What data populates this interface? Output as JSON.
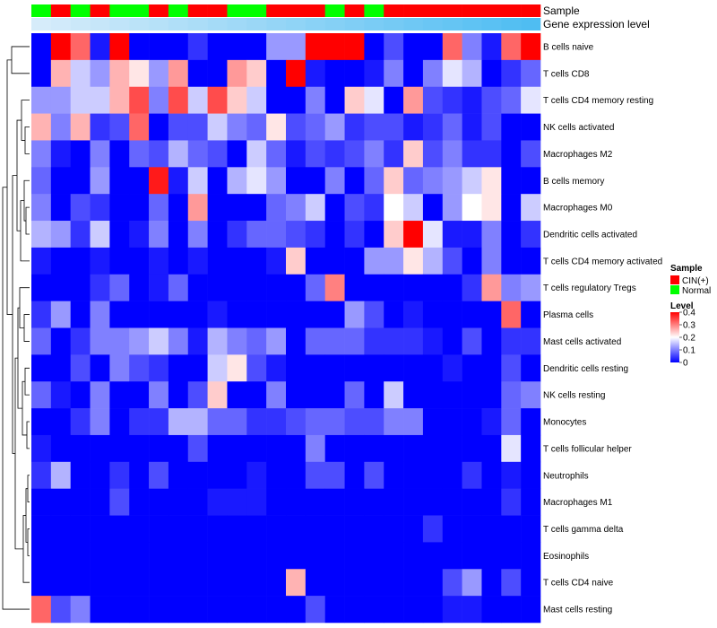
{
  "chart_data": {
    "type": "heatmap",
    "title": "",
    "annotation_titles": {
      "sample": "Sample",
      "gene": "Gene expression level"
    },
    "sample_annotation": [
      1,
      0,
      1,
      0,
      1,
      1,
      0,
      1,
      0,
      0,
      1,
      1,
      0,
      0,
      0,
      1,
      0,
      1,
      0,
      0,
      0,
      0,
      0,
      0,
      0,
      0
    ],
    "gene_expression_annotation": [
      0.0,
      0.04,
      0.08,
      0.12,
      0.16,
      0.2,
      0.24,
      0.28,
      0.32,
      0.36,
      0.4,
      0.44,
      0.48,
      0.52,
      0.56,
      0.6,
      0.64,
      0.68,
      0.72,
      0.76,
      0.8,
      0.84,
      0.88,
      0.92,
      0.96,
      1.0
    ],
    "gene_expression_colors": [
      "#d6ecfa",
      "#4fbdf2"
    ],
    "rows": [
      "B cells naive",
      "T cells CD8",
      "T cells CD4 memory resting",
      "NK cells activated",
      "Macrophages M2",
      "B cells memory",
      "Macrophages M0",
      "Dendritic cells activated",
      "T cells CD4 memory activated",
      "T cells regulatory  Tregs",
      "Plasma cells",
      "Mast cells activated",
      "Dendritic cells resting",
      "NK cells resting",
      "Monocytes",
      "T cells follicular helper",
      "Neutrophils",
      "Macrophages M1",
      "T cells gamma delta",
      "Eosinophils",
      "T cells CD4 naive",
      "Mast cells resting"
    ],
    "values": [
      [
        0,
        0.4,
        0.32,
        0.02,
        0.4,
        0,
        0,
        0,
        0.04,
        0,
        0,
        0,
        0.12,
        0.12,
        0.4,
        0.4,
        0.4,
        0,
        0.06,
        0,
        0,
        0.32,
        0.1,
        0.02,
        0.32,
        0.4
      ],
      [
        0,
        0.26,
        0.16,
        0.12,
        0.26,
        0.22,
        0.12,
        0.28,
        0,
        0,
        0.28,
        0.24,
        0,
        0.4,
        0.02,
        0,
        0,
        0.02,
        0.1,
        0,
        0.1,
        0.18,
        0.14,
        0,
        0.04,
        0.08
      ],
      [
        0.12,
        0.12,
        0.16,
        0.16,
        0.26,
        0.34,
        0.1,
        0.34,
        0.16,
        0.34,
        0.24,
        0.16,
        0,
        0,
        0.1,
        0,
        0.24,
        0.18,
        0,
        0.28,
        0.06,
        0.04,
        0.02,
        0.06,
        0.08,
        0.18
      ],
      [
        0.26,
        0.1,
        0.26,
        0.04,
        0.06,
        0.32,
        0,
        0.06,
        0.06,
        0.16,
        0.1,
        0.08,
        0.22,
        0.06,
        0.08,
        0.12,
        0.04,
        0.06,
        0.06,
        0.02,
        0.04,
        0.08,
        0.02,
        0.06,
        0,
        0
      ],
      [
        0.1,
        0.02,
        0,
        0.1,
        0,
        0.08,
        0.06,
        0.14,
        0.08,
        0.06,
        0,
        0.16,
        0.08,
        0.02,
        0.06,
        0.04,
        0.06,
        0.1,
        0.04,
        0.24,
        0.06,
        0.1,
        0.04,
        0.04,
        0,
        0.06
      ],
      [
        0.08,
        0,
        0,
        0.12,
        0,
        0,
        0.38,
        0.02,
        0.16,
        0,
        0.14,
        0.18,
        0.12,
        0,
        0,
        0.1,
        0,
        0.08,
        0.24,
        0.08,
        0.1,
        0.12,
        0.16,
        0.22,
        0,
        0
      ],
      [
        0.1,
        0,
        0.06,
        0.04,
        0,
        0,
        0.08,
        0,
        0.28,
        0,
        0,
        0,
        0.08,
        0.1,
        0.16,
        0,
        0.06,
        0.04,
        0.2,
        0.16,
        0,
        0.12,
        0.2,
        0.22,
        0,
        0.16
      ],
      [
        0.14,
        0.12,
        0.04,
        0.16,
        0,
        0.02,
        0.1,
        0,
        0.1,
        0,
        0.04,
        0.08,
        0.08,
        0.06,
        0.04,
        0,
        0.04,
        0,
        0.24,
        0.4,
        0.18,
        0.02,
        0.02,
        0.1,
        0,
        0.04
      ],
      [
        0.02,
        0,
        0,
        0.02,
        0,
        0,
        0.02,
        0,
        0.02,
        0,
        0,
        0,
        0.02,
        0.24,
        0,
        0,
        0,
        0.12,
        0.12,
        0.22,
        0.14,
        0.06,
        0,
        0.1,
        0,
        0
      ],
      [
        0,
        0,
        0,
        0.04,
        0.08,
        0,
        0.02,
        0.08,
        0,
        0,
        0,
        0,
        0,
        0,
        0.08,
        0.3,
        0,
        0,
        0,
        0,
        0,
        0,
        0.04,
        0.28,
        0.1,
        0.12
      ],
      [
        0.04,
        0.12,
        0,
        0.1,
        0,
        0,
        0,
        0,
        0,
        0.02,
        0,
        0,
        0,
        0,
        0,
        0,
        0.12,
        0.06,
        0,
        0.02,
        0,
        0,
        0,
        0,
        0.32,
        0
      ],
      [
        0.08,
        0,
        0.04,
        0.1,
        0.1,
        0.12,
        0.16,
        0.1,
        0.02,
        0.14,
        0.1,
        0.08,
        0.12,
        0,
        0.08,
        0.08,
        0.08,
        0.04,
        0.04,
        0.04,
        0.02,
        0,
        0.06,
        0,
        0.04,
        0.04
      ],
      [
        0,
        0,
        0.06,
        0,
        0.1,
        0.06,
        0.04,
        0,
        0,
        0.16,
        0.22,
        0.06,
        0.02,
        0,
        0,
        0,
        0,
        0,
        0,
        0,
        0,
        0.02,
        0,
        0,
        0.06,
        0
      ],
      [
        0.08,
        0.02,
        0,
        0.1,
        0,
        0,
        0.1,
        0,
        0.06,
        0.24,
        0,
        0,
        0.1,
        0,
        0,
        0,
        0.08,
        0,
        0.16,
        0,
        0,
        0,
        0,
        0,
        0.08,
        0.1
      ],
      [
        0,
        0,
        0.04,
        0.1,
        0,
        0.04,
        0.04,
        0.14,
        0.14,
        0.08,
        0.08,
        0.04,
        0.04,
        0.06,
        0.08,
        0.08,
        0.06,
        0.06,
        0.1,
        0.1,
        0,
        0,
        0,
        0.02,
        0.08,
        0
      ],
      [
        0.02,
        0,
        0,
        0,
        0,
        0,
        0,
        0,
        0.06,
        0,
        0,
        0,
        0,
        0,
        0.1,
        0,
        0,
        0,
        0,
        0,
        0,
        0,
        0,
        0,
        0.18,
        0
      ],
      [
        0.04,
        0.14,
        0,
        0,
        0.04,
        0,
        0.06,
        0,
        0,
        0,
        0,
        0.02,
        0,
        0,
        0.06,
        0.06,
        0,
        0.06,
        0,
        0,
        0,
        0,
        0.04,
        0,
        0.02,
        0
      ],
      [
        0,
        0,
        0,
        0,
        0.06,
        0,
        0,
        0,
        0,
        0.02,
        0.02,
        0.02,
        0,
        0,
        0,
        0,
        0,
        0,
        0,
        0,
        0,
        0,
        0,
        0,
        0.04,
        0
      ],
      [
        0,
        0,
        0,
        0,
        0,
        0,
        0,
        0,
        0,
        0,
        0,
        0,
        0,
        0,
        0,
        0,
        0,
        0,
        0,
        0,
        0.04,
        0,
        0,
        0,
        0,
        0
      ],
      [
        0,
        0,
        0,
        0,
        0,
        0,
        0,
        0,
        0,
        0,
        0,
        0,
        0,
        0,
        0,
        0,
        0,
        0,
        0,
        0,
        0,
        0,
        0,
        0,
        0,
        0
      ],
      [
        0,
        0,
        0,
        0,
        0,
        0,
        0,
        0,
        0,
        0,
        0,
        0,
        0,
        0.26,
        0,
        0,
        0,
        0,
        0,
        0,
        0,
        0.06,
        0.12,
        0,
        0.06,
        0
      ],
      [
        0.32,
        0.06,
        0.1,
        0,
        0,
        0,
        0,
        0,
        0,
        0,
        0,
        0,
        0,
        0,
        0.06,
        0,
        0,
        0,
        0,
        0,
        0,
        0.02,
        0.02,
        0,
        0,
        0
      ]
    ],
    "color_scale": {
      "min": 0,
      "mid": 0.2,
      "max": 0.4,
      "low": "#0000ff",
      "midColor": "#ffffff",
      "high": "#ff0000"
    },
    "legend": {
      "sample": {
        "title": "Sample",
        "entries": [
          {
            "label": "CIN(+)",
            "color": "#ff0000"
          },
          {
            "label": "Normal",
            "color": "#00ff00"
          }
        ]
      },
      "level": {
        "title": "Level",
        "ticks": [
          0.4,
          0.3,
          0.2,
          0.1,
          0
        ]
      },
      "placement": "right"
    },
    "row_dendrogram": true
  }
}
